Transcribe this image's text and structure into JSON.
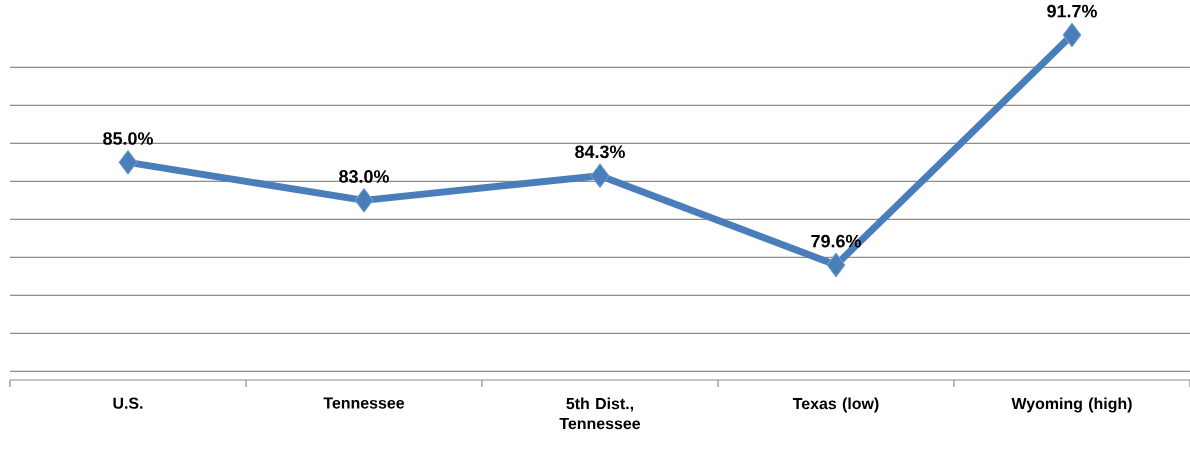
{
  "chart_data": {
    "type": "line",
    "categories": [
      "U.S.",
      "Tennessee",
      "5th Dist., Tennessee",
      "Texas (low)",
      "Wyoming (high)"
    ],
    "values": [
      85.0,
      83.0,
      84.3,
      79.6,
      91.7
    ],
    "value_labels": [
      "85.0%",
      "83.0%",
      "84.3%",
      "79.6%",
      "91.7%"
    ],
    "color": "#4a7ebb",
    "marker": "diamond",
    "line_style": "solid",
    "grid": "y",
    "tick_labels": "x"
  }
}
